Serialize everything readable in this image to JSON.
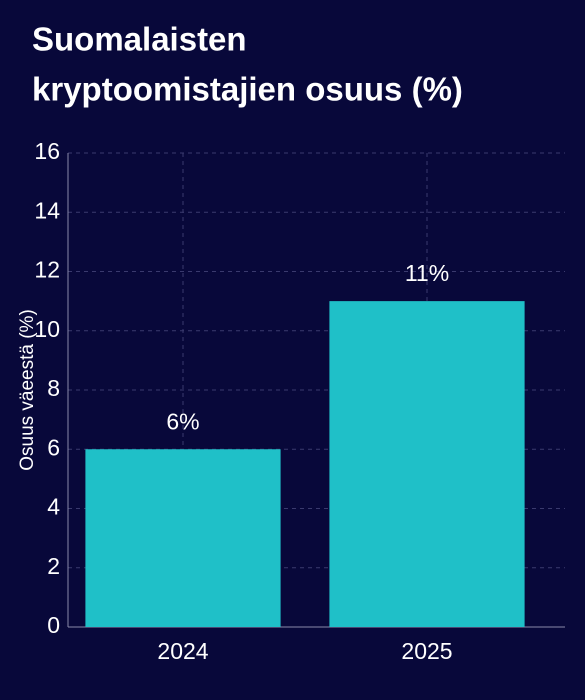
{
  "chart_data": {
    "type": "bar",
    "title": [
      "Suomalaisten",
      "kryptoomistajien osuus (%)"
    ],
    "y_label": "Osuus väeestä (%)",
    "categories": [
      "2024",
      "2025"
    ],
    "values": [
      6,
      11
    ],
    "value_labels": [
      "6%",
      "11%"
    ],
    "color": "#1fc0c8",
    "ylim": [
      0,
      16
    ],
    "yticks": [
      0,
      2,
      4,
      6,
      8,
      10,
      12,
      14,
      16
    ],
    "grid": true
  }
}
